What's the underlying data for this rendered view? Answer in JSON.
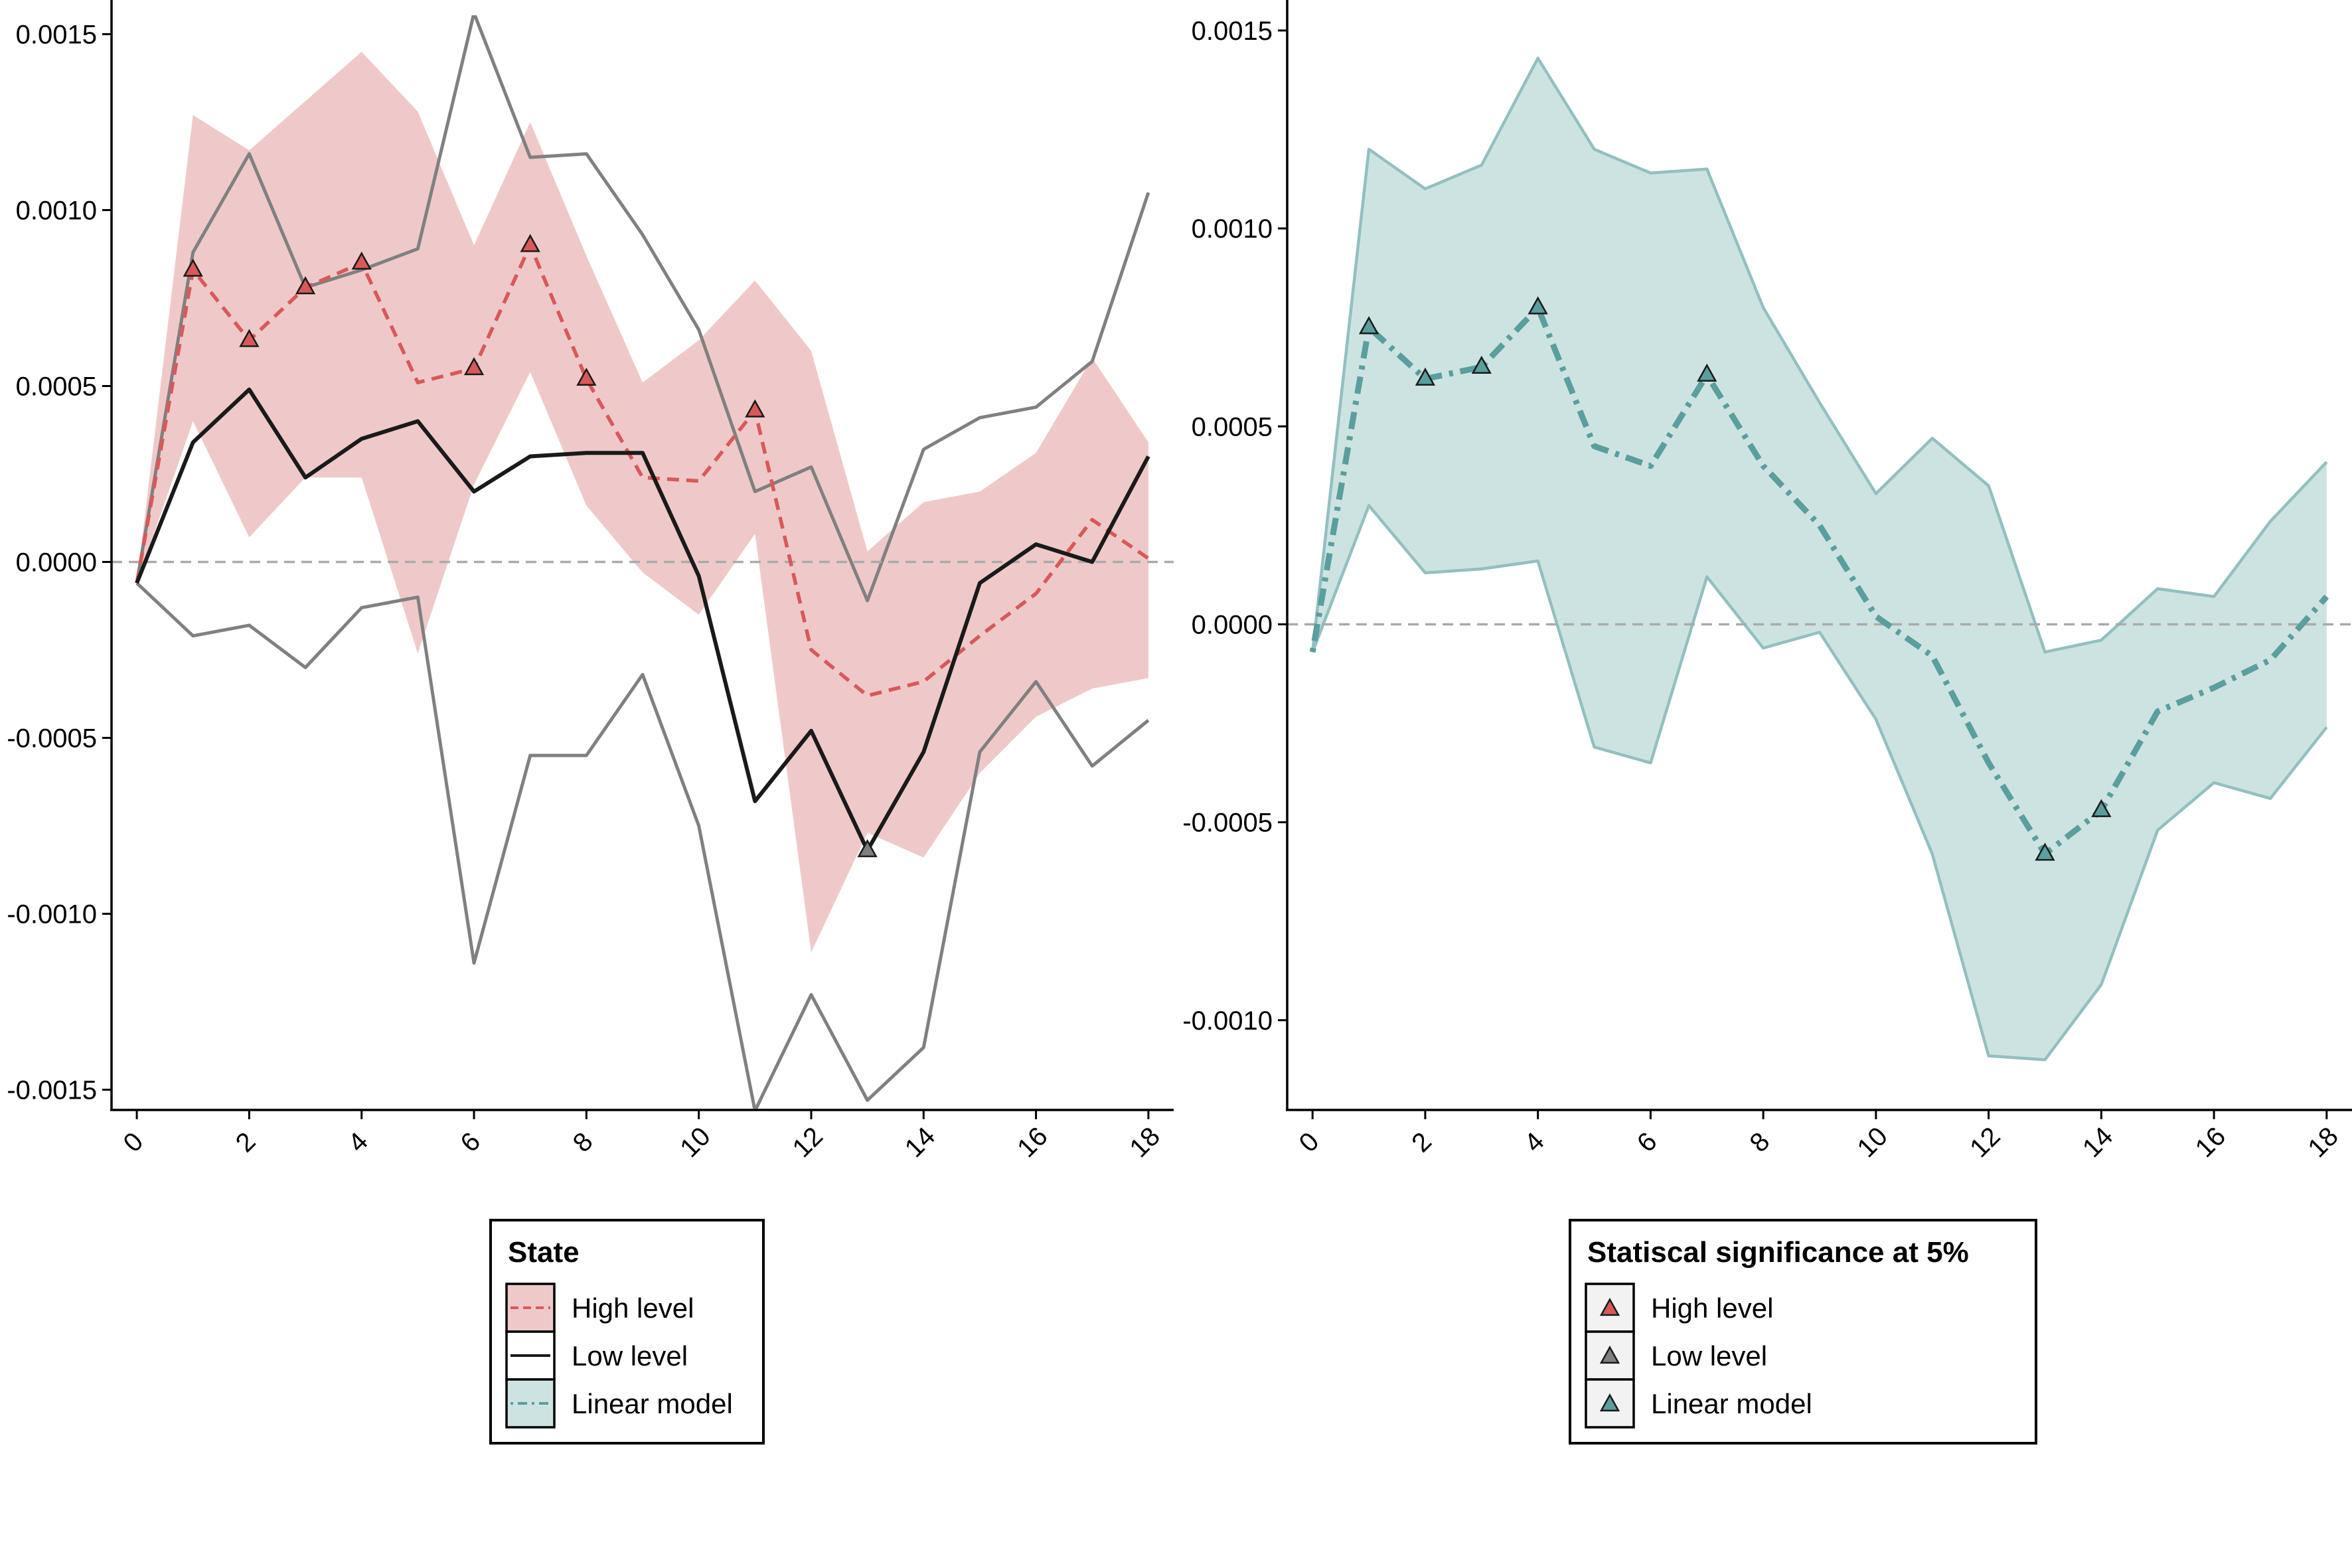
{
  "colors": {
    "high": "#D9585A",
    "high_band": "#EFC9C9",
    "low": "#1A1A1A",
    "low_bounds": "#808080",
    "linear": "#5A9E9E",
    "linear_band": "#CDE3E2",
    "linear_band_edge": "#93BFBF",
    "zero_line": "#AAAAAA",
    "marker_low": "#7F7F7F"
  },
  "chart_data": [
    {
      "type": "line",
      "x": [
        0,
        1,
        2,
        3,
        4,
        5,
        6,
        7,
        8,
        9,
        10,
        11,
        12,
        13,
        14,
        15,
        16,
        17,
        18
      ],
      "x_ticks": [
        "0",
        "2",
        "4",
        "6",
        "8",
        "10",
        "12",
        "14",
        "16",
        "18"
      ],
      "y_ticks": [
        "-0.0015",
        "-0.0010",
        "-0.0005",
        "0.0000",
        "0.0005",
        "0.0010",
        "0.0015"
      ],
      "xlim": [
        -0.45,
        18.45
      ],
      "ylim": [
        -0.00155,
        0.00155
      ],
      "hline": 0,
      "grid": false,
      "series": [
        {
          "name": "High level",
          "style": "dashed",
          "color": "#D9585A",
          "values": [
            -6e-05,
            0.00083,
            0.00063,
            0.00078,
            0.00085,
            0.00051,
            0.00055,
            0.0009,
            0.00052,
            0.00024,
            0.00023,
            0.00043,
            -0.00025,
            -0.00038,
            -0.00034,
            -0.00021,
            -9e-05,
            0.00012,
            1e-05
          ],
          "lower": [
            -6e-05,
            0.0004,
            7e-05,
            0.00024,
            0.00024,
            -0.00026,
            0.00022,
            0.00054,
            0.00016,
            -3e-05,
            -0.00015,
            8e-05,
            -0.00111,
            -0.00077,
            -0.00084,
            -0.0006,
            -0.00044,
            -0.00036,
            -0.00033
          ],
          "upper": [
            -6e-05,
            0.00127,
            0.00117,
            0.00131,
            0.00145,
            0.00128,
            0.0009,
            0.00125,
            0.00087,
            0.00051,
            0.00063,
            0.0008,
            0.0006,
            3e-05,
            0.00017,
            0.0002,
            0.00031,
            0.00058,
            0.00034
          ],
          "significant": [
            1,
            2,
            3,
            4,
            6,
            7,
            8,
            11
          ]
        },
        {
          "name": "Low level",
          "style": "solid",
          "color": "#1A1A1A",
          "values": [
            -6e-05,
            0.00034,
            0.00049,
            0.00024,
            0.00035,
            0.0004,
            0.0002,
            0.0003,
            0.00031,
            0.00031,
            -4e-05,
            -0.00068,
            -0.00048,
            -0.00082,
            -0.00054,
            -6e-05,
            5e-05,
            0.0,
            0.0003
          ],
          "lower": [
            -6e-05,
            -0.00021,
            -0.00018,
            -0.0003,
            -0.00013,
            -0.0001,
            -0.00114,
            -0.00055,
            -0.00055,
            -0.00032,
            -0.00075,
            -0.00156,
            -0.00123,
            -0.00153,
            -0.00138,
            -0.00054,
            -0.00034,
            -0.00058,
            -0.00045
          ],
          "upper": [
            -6e-05,
            0.00088,
            0.00116,
            0.00078,
            0.00083,
            0.00089,
            0.00156,
            0.00115,
            0.00116,
            0.00093,
            0.00066,
            0.0002,
            0.00027,
            -0.00011,
            0.00032,
            0.00041,
            0.00044,
            0.00057,
            0.00105
          ],
          "significant": [
            13
          ]
        }
      ],
      "legend": {
        "title": "State",
        "entries": [
          "High level",
          "Low level",
          "Linear model"
        ]
      }
    },
    {
      "type": "line",
      "x": [
        0,
        1,
        2,
        3,
        4,
        5,
        6,
        7,
        8,
        9,
        10,
        11,
        12,
        13,
        14,
        15,
        16,
        17,
        18
      ],
      "x_ticks": [
        "0",
        "2",
        "4",
        "6",
        "8",
        "10",
        "12",
        "14",
        "16",
        "18"
      ],
      "y_ticks": [
        "-0.0010",
        "-0.0005",
        "0.0000",
        "0.0005",
        "0.0010",
        "0.0015"
      ],
      "xlim": [
        -0.45,
        18.45
      ],
      "ylim": [
        -0.00122,
        0.00152
      ],
      "hline": 0,
      "grid": false,
      "series": [
        {
          "name": "Linear model",
          "style": "dotdash",
          "color": "#5A9E9E",
          "values": [
            -7e-05,
            0.00075,
            0.00062,
            0.00065,
            0.0008,
            0.00045,
            0.0004,
            0.00063,
            0.0004,
            0.00025,
            2e-05,
            -8e-05,
            -0.00035,
            -0.00058,
            -0.00047,
            -0.00022,
            -0.00016,
            -9e-05,
            7e-05
          ],
          "lower": [
            -7e-05,
            0.0003,
            0.00013,
            0.00014,
            0.00016,
            -0.00031,
            -0.00035,
            0.00012,
            -6e-05,
            -2e-05,
            -0.00024,
            -0.00058,
            -0.00109,
            -0.0011,
            -0.00091,
            -0.00052,
            -0.0004,
            -0.00044,
            -0.00026
          ],
          "upper": [
            -7e-05,
            0.0012,
            0.0011,
            0.00116,
            0.00143,
            0.0012,
            0.00114,
            0.00115,
            0.0008,
            0.00056,
            0.00033,
            0.00047,
            0.00035,
            -7e-05,
            -4e-05,
            9e-05,
            7e-05,
            0.00026,
            0.00041
          ],
          "significant": [
            1,
            2,
            3,
            4,
            7,
            13,
            14
          ]
        }
      ],
      "legend": {
        "title": "Statiscal significance at 5%",
        "entries": [
          "High level",
          "Low level",
          "Linear model"
        ]
      }
    }
  ]
}
